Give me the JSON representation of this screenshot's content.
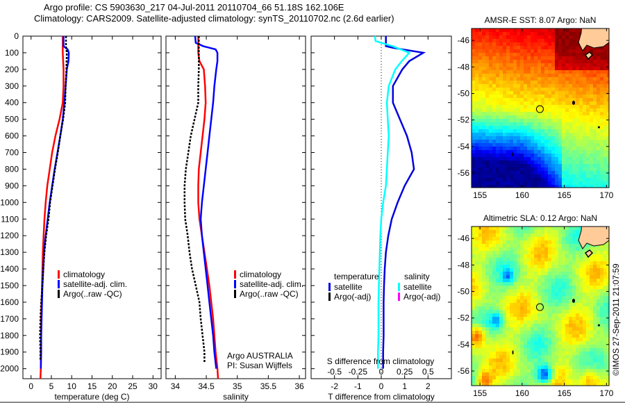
{
  "header": {
    "title_line1": "Argo profile: CS 5903630_217 04-Jul-2011 20110704_66 51.18S 162.106E",
    "title_line2": "Climatology: CARS2009. Satellite-adjusted climatology: synTS_20110702.nc (2.6d earlier)"
  },
  "colors": {
    "climatology": "#ff0000",
    "satellite": "#0000ff",
    "argo": "#000000",
    "salinity_satellite": "#00ffff",
    "salinity_argo": "#ff00ff",
    "temperature_satellite": "#0000e0",
    "land": "#ffcc99"
  },
  "chart_data": [
    {
      "type": "line",
      "name": "temperature-profile",
      "xlabel": "temperature (deg C)",
      "ylabel": "",
      "xlim": [
        -2,
        32
      ],
      "ylim": [
        2060,
        0
      ],
      "xticks": [
        0,
        5,
        10,
        15,
        20,
        25,
        30
      ],
      "yticks": [
        0,
        100,
        200,
        300,
        400,
        500,
        600,
        700,
        800,
        900,
        1000,
        1100,
        1200,
        1300,
        1400,
        1500,
        1600,
        1700,
        1800,
        1900,
        2000
      ],
      "legend": [
        "climatology",
        "satellite-adj. clim.",
        "Argo(..raw -QC)"
      ],
      "legend_position": "center",
      "series": [
        {
          "name": "climatology",
          "color_key": "climatology",
          "depth": [
            0,
            100,
            200,
            300,
            400,
            500,
            600,
            700,
            800,
            900,
            1000,
            1100,
            1200,
            1300,
            1400,
            1500,
            1600,
            1700,
            1800,
            1900,
            2000,
            2060
          ],
          "values": [
            7.8,
            7.8,
            8.0,
            8.0,
            7.8,
            7.0,
            6.0,
            5.2,
            4.6,
            4.0,
            3.6,
            3.3,
            3.1,
            2.9,
            2.8,
            2.7,
            2.6,
            2.5,
            2.5,
            2.4,
            2.4,
            2.3
          ]
        },
        {
          "name": "satellite-adj. clim.",
          "color_key": "satellite",
          "depth": [
            0,
            60,
            80,
            100,
            150,
            200,
            300,
            400,
            500,
            600,
            700,
            800,
            900,
            1000,
            1100,
            1200,
            1300,
            1400,
            1500,
            1600,
            1700,
            1800,
            1900,
            2000
          ],
          "values": [
            8.0,
            8.0,
            9.0,
            9.3,
            9.2,
            8.8,
            8.5,
            8.2,
            7.8,
            7.2,
            6.5,
            5.8,
            5.2,
            4.6,
            4.1,
            3.6,
            3.2,
            3.0,
            2.8,
            2.7,
            2.6,
            2.5,
            2.5,
            2.4
          ]
        },
        {
          "name": "Argo(..raw -QC)",
          "color_key": "argo",
          "depth": [
            0,
            60,
            100,
            200,
            300,
            400,
            500,
            600,
            700,
            800,
            900,
            1000,
            1100,
            1200,
            1300,
            1400,
            1500,
            1600,
            1700,
            1800,
            1900,
            1950
          ],
          "values": [
            8.6,
            8.6,
            8.8,
            8.7,
            8.5,
            8.4,
            7.9,
            7.2,
            6.6,
            5.9,
            5.3,
            4.7,
            4.3,
            3.7,
            3.3,
            3.0,
            2.8,
            2.5,
            2.3,
            2.2,
            2.3,
            2.3
          ]
        }
      ]
    },
    {
      "type": "line",
      "name": "salinity-profile",
      "xlabel": "salinity",
      "xlim": [
        33.85,
        36.1
      ],
      "ylim": [
        2060,
        0
      ],
      "xticks": [
        34,
        34.5,
        35,
        35.5,
        36
      ],
      "legend": [
        "climatology",
        "satellite-adj. clim.",
        "Argo(..raw -QC)"
      ],
      "legend_position": "center-right",
      "annotation": [
        "Argo AUSTRALIA",
        "PI: Susan Wijffels"
      ],
      "series": [
        {
          "name": "climatology",
          "color_key": "climatology",
          "depth": [
            0,
            100,
            150,
            200,
            300,
            400,
            500,
            600,
            700,
            800,
            900,
            1000,
            1100,
            1200,
            1300,
            1400,
            1500,
            1600,
            1700,
            1800,
            1900,
            2000,
            2060
          ],
          "values": [
            34.37,
            34.37,
            34.39,
            34.46,
            34.48,
            34.49,
            34.47,
            34.44,
            34.41,
            34.38,
            34.37,
            34.37,
            34.39,
            34.43,
            34.47,
            34.51,
            34.55,
            34.58,
            34.61,
            34.63,
            34.65,
            34.68,
            34.69
          ]
        },
        {
          "name": "satellite-adj. clim.",
          "color_key": "satellite",
          "depth": [
            0,
            40,
            60,
            80,
            100,
            150,
            200,
            300,
            400,
            500,
            600,
            700,
            800,
            900,
            1000,
            1100,
            1200,
            1300,
            1400,
            1500,
            1600,
            1700,
            1800,
            1900,
            2000
          ],
          "values": [
            34.32,
            34.33,
            34.45,
            34.65,
            34.68,
            34.68,
            34.66,
            34.63,
            34.61,
            34.58,
            34.55,
            34.52,
            34.49,
            34.46,
            34.43,
            34.41,
            34.43,
            34.46,
            34.49,
            34.52,
            34.55,
            34.58,
            34.61,
            34.63,
            34.66
          ]
        },
        {
          "name": "Argo(..raw -QC)",
          "color_key": "argo",
          "depth": [
            0,
            100,
            200,
            300,
            400,
            500,
            600,
            700,
            800,
            900,
            1000,
            1100,
            1200,
            1300,
            1400,
            1500,
            1600,
            1700,
            1800,
            1900,
            1960
          ],
          "values": [
            34.38,
            34.38,
            34.38,
            34.37,
            34.37,
            34.31,
            34.25,
            34.21,
            34.17,
            34.15,
            34.15,
            34.16,
            34.2,
            34.23,
            34.27,
            34.33,
            34.39,
            34.41,
            34.44,
            34.47,
            34.47
          ]
        }
      ]
    },
    {
      "type": "line",
      "name": "difference-profile",
      "xlabel": "T difference from climatology",
      "xlabel_top": "S difference from climatology",
      "xlim": [
        -3,
        3
      ],
      "ylim": [
        2060,
        0
      ],
      "xticks": [
        -2,
        -1,
        0,
        1,
        2
      ],
      "s_xticks": [
        -0.5,
        -0.25,
        0,
        0.25,
        0.5
      ],
      "s_scale": 4,
      "zero_line": true,
      "legend_temperature": {
        "title": "temperature",
        "items": [
          "satellite",
          "Argo(-adj)"
        ]
      },
      "legend_salinity": {
        "title": "salinity",
        "items": [
          "satellite",
          "Argo(-adj)"
        ]
      },
      "series": [
        {
          "name": "temperature satellite",
          "color_key": "temperature_satellite",
          "depth": [
            0,
            60,
            70,
            100,
            150,
            200,
            300,
            400,
            500,
            600,
            700,
            800,
            900,
            1000,
            1100,
            1200,
            1300,
            1400,
            1500,
            1600,
            1700,
            1800,
            1900,
            2000
          ],
          "values": [
            0.2,
            0.2,
            0.5,
            1.8,
            1.2,
            0.9,
            0.5,
            0.5,
            0.8,
            1.1,
            1.3,
            1.4,
            1.0,
            0.7,
            0.45,
            0.3,
            0.2,
            0.15,
            0.12,
            0.1,
            0.1,
            0.1,
            0.08,
            0.08
          ]
        },
        {
          "name": "salinity satellite",
          "color_key": "salinity_satellite",
          "depth": [
            0,
            30,
            60,
            100,
            150,
            200,
            300,
            400,
            500,
            600,
            700,
            800,
            900,
            1000,
            1100,
            1200,
            1300,
            1400,
            1500,
            1600,
            1700,
            1800,
            1900,
            2000
          ],
          "values": [
            -0.07,
            -0.06,
            0.12,
            0.3,
            0.22,
            0.15,
            0.08,
            0.06,
            0.07,
            0.08,
            0.07,
            0.06,
            0.05,
            0.02,
            0.0,
            -0.01,
            -0.015,
            -0.02,
            -0.025,
            -0.03,
            -0.03,
            -0.03,
            -0.035,
            -0.035
          ]
        }
      ]
    },
    {
      "type": "heatmap",
      "name": "sst-map",
      "title": "AMSR-E SST: 8.07 Argo: NaN",
      "xlim": [
        154,
        170.3
      ],
      "ylim": [
        -57.1,
        -45.1
      ],
      "xticks": [
        155,
        160,
        165,
        170
      ],
      "yticks": [
        -46,
        -48,
        -50,
        -52,
        -54,
        -56
      ],
      "argo_position": {
        "lon": 162.106,
        "lat": -51.18
      }
    },
    {
      "type": "heatmap",
      "name": "sla-map",
      "title": "Altimetric SLA: 0.12 Argo: NaN",
      "xlim": [
        154,
        170.3
      ],
      "ylim": [
        -57.1,
        -45.1
      ],
      "xticks": [
        155,
        160,
        165,
        170
      ],
      "yticks": [
        -46,
        -48,
        -50,
        -52,
        -54,
        -56
      ],
      "argo_position": {
        "lon": 162.106,
        "lat": -51.18
      }
    }
  ],
  "footer": {
    "credit": "©IMOS 27-Sep-2011 21:07:59"
  }
}
